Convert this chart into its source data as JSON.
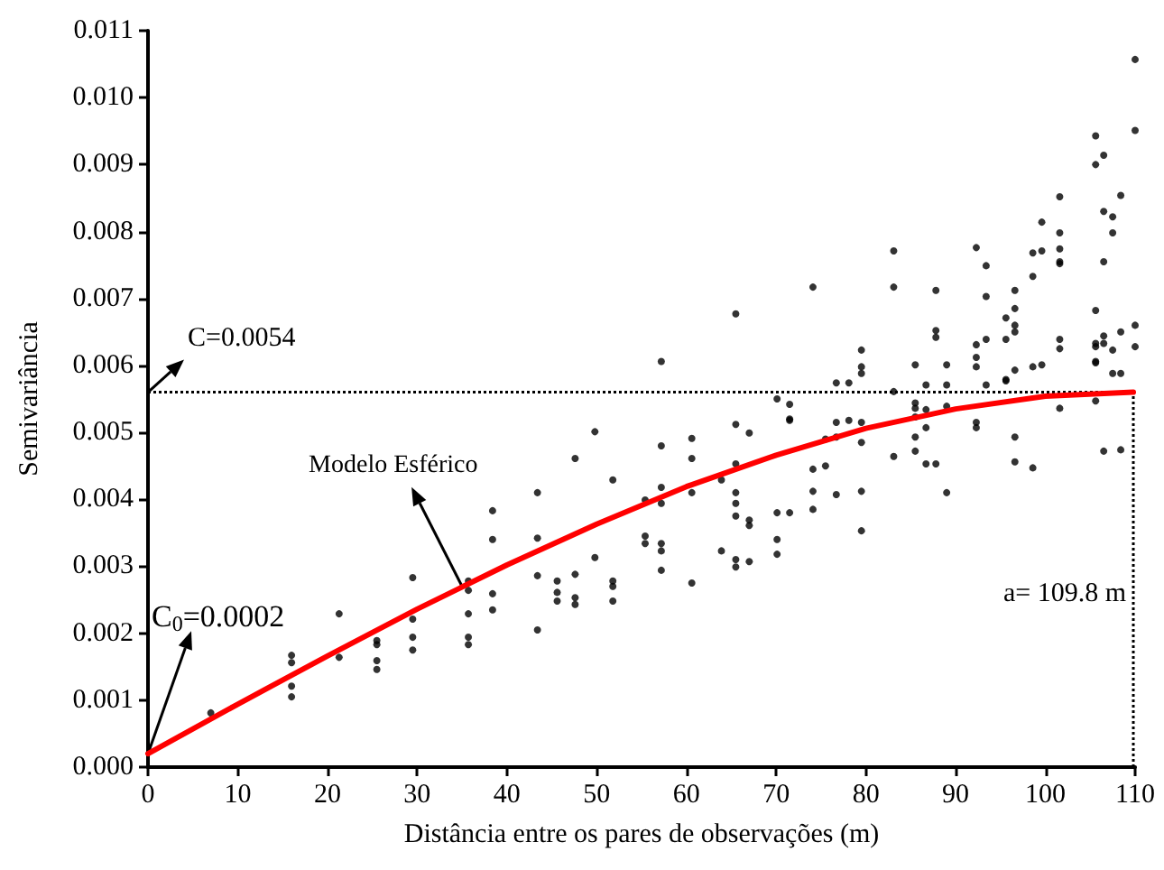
{
  "chart_data": {
    "type": "scatter",
    "xlabel": "Distância entre os pares de observações (m)",
    "ylabel": "Semivariância",
    "xlim": [
      0,
      110
    ],
    "xticks": [
      0,
      10,
      20,
      30,
      40,
      50,
      60,
      70,
      80,
      90,
      100,
      110
    ],
    "ylim": [
      0,
      0.011
    ],
    "yticks": [
      {
        "value": 0,
        "label": "0.000"
      },
      {
        "value": 0.001,
        "label": "0.001"
      },
      {
        "value": 0.002,
        "label": "0.002"
      },
      {
        "value": 0.003,
        "label": "0.003"
      },
      {
        "value": 0.004,
        "label": "0.004"
      },
      {
        "value": 0.005,
        "label": "0.005"
      },
      {
        "value": 0.006,
        "label": "0.006"
      },
      {
        "value": 0.007,
        "label": "0.007"
      },
      {
        "value": 0.008,
        "label": "0.008"
      },
      {
        "value": 0.009,
        "label": "0.009"
      },
      {
        "value": 0.01,
        "label": "0.010"
      },
      {
        "value": 0.011,
        "label": "0.011"
      }
    ],
    "grid": false,
    "marker": "circle",
    "series": [
      {
        "color": "#000000",
        "x": [
          7,
          16,
          16,
          16,
          16,
          21.3,
          21.3,
          25.5,
          25.5,
          25.5,
          25.5,
          29.5,
          29.5,
          29.5,
          29.5,
          35.7,
          35.7,
          35.7,
          35.7,
          35.7,
          38.4,
          38.4,
          38.4,
          38.4,
          43.4,
          43.4,
          43.4,
          43.4,
          45.6,
          45.6,
          45.6,
          47.6,
          47.6,
          47.6,
          47.6,
          49.8,
          49.8,
          51.8,
          51.8,
          51.8,
          51.8,
          55.4,
          55.4,
          55.4,
          57.2,
          57.2,
          57.2,
          57.2,
          57.2,
          57.2,
          57.2,
          60.6,
          60.6,
          60.6,
          60.6,
          63.9,
          63.9,
          65.5,
          65.5,
          65.5,
          65.5,
          65.5,
          65.5,
          65.5,
          65.5,
          67,
          67,
          67,
          67,
          70.1,
          70.1,
          70.1,
          70.1,
          71.5,
          71.5,
          71.5,
          71.5,
          74.1,
          74.1,
          74.1,
          74.1,
          75.5,
          75.5,
          76.7,
          76.7,
          76.7,
          76.7,
          78.1,
          78.1,
          79.5,
          79.5,
          79.5,
          79.5,
          79.5,
          79.5,
          79.5,
          83.1,
          83.1,
          83.1,
          83.1,
          85.5,
          85.5,
          85.5,
          85.5,
          85.5,
          85.5,
          86.7,
          86.7,
          86.7,
          86.7,
          87.8,
          87.8,
          87.8,
          87.8,
          89,
          89,
          89,
          89,
          92.3,
          92.3,
          92.3,
          92.3,
          92.3,
          92.3,
          93.4,
          93.4,
          93.4,
          93.4,
          95.6,
          95.6,
          95.6,
          95.6,
          96.6,
          96.6,
          96.6,
          96.6,
          96.6,
          96.6,
          96.6,
          98.6,
          98.6,
          98.6,
          98.6,
          99.6,
          99.6,
          99.6,
          101.6,
          101.6,
          101.6,
          101.6,
          101.6,
          101.6,
          101.6,
          101.6,
          105.6,
          105.6,
          105.6,
          105.6,
          105.6,
          105.6,
          105.6,
          105.6,
          106.5,
          106.5,
          106.5,
          106.5,
          106.5,
          106.5,
          107.5,
          107.5,
          107.5,
          107.5,
          108.4,
          108.4,
          108.4,
          108.4,
          110,
          110,
          110,
          110
        ],
        "values": [
          0.00081,
          0.00167,
          0.00156,
          0.00121,
          0.00105,
          0.00229,
          0.00164,
          0.00189,
          0.00183,
          0.00159,
          0.00146,
          0.00283,
          0.00221,
          0.00194,
          0.00175,
          0.00278,
          0.00264,
          0.00229,
          0.00194,
          0.00183,
          0.00383,
          0.0034,
          0.00259,
          0.00235,
          0.0041,
          0.00342,
          0.00286,
          0.00205,
          0.00278,
          0.00261,
          0.00248,
          0.00461,
          0.00288,
          0.00253,
          0.00243,
          0.00501,
          0.00313,
          0.00429,
          0.00278,
          0.0027,
          0.00248,
          0.00399,
          0.00345,
          0.00334,
          0.00606,
          0.0048,
          0.00418,
          0.00394,
          0.00334,
          0.00323,
          0.00294,
          0.00491,
          0.00461,
          0.0041,
          0.00275,
          0.00429,
          0.00323,
          0.00677,
          0.00512,
          0.00453,
          0.0041,
          0.00394,
          0.00375,
          0.0031,
          0.00299,
          0.00499,
          0.00369,
          0.00361,
          0.00307,
          0.0055,
          0.0038,
          0.0034,
          0.00318,
          0.00542,
          0.0052,
          0.00518,
          0.0038,
          0.00717,
          0.00445,
          0.00412,
          0.00385,
          0.0049,
          0.0045,
          0.00574,
          0.00515,
          0.00493,
          0.00407,
          0.00574,
          0.00518,
          0.00623,
          0.00598,
          0.00588,
          0.00515,
          0.00485,
          0.00412,
          0.00353,
          0.00771,
          0.00717,
          0.00561,
          0.00464,
          0.00601,
          0.00544,
          0.00536,
          0.00523,
          0.00493,
          0.00472,
          0.00571,
          0.00534,
          0.00507,
          0.00453,
          0.00712,
          0.00652,
          0.00642,
          0.00453,
          0.00601,
          0.00571,
          0.00539,
          0.0041,
          0.00776,
          0.00631,
          0.00612,
          0.00598,
          0.00515,
          0.00507,
          0.00749,
          0.00703,
          0.00639,
          0.00571,
          0.00671,
          0.00639,
          0.00579,
          0.00577,
          0.00712,
          0.00685,
          0.0066,
          0.0065,
          0.00593,
          0.00493,
          0.00456,
          0.00768,
          0.00733,
          0.00598,
          0.00447,
          0.00814,
          0.00771,
          0.00601,
          0.00852,
          0.00798,
          0.00774,
          0.00755,
          0.00752,
          0.00639,
          0.00625,
          0.00536,
          0.00943,
          0.009,
          0.00682,
          0.00633,
          0.00628,
          0.00606,
          0.00604,
          0.00547,
          0.00914,
          0.0083,
          0.00755,
          0.00644,
          0.00633,
          0.00472,
          0.00822,
          0.00798,
          0.00623,
          0.00588,
          0.00854,
          0.0065,
          0.00588,
          0.00474,
          0.01057,
          0.00951,
          0.0066,
          0.00628
        ]
      },
      {
        "type": "line",
        "color": "#ff0000",
        "marker": "none",
        "line_style": "solid",
        "x": [
          0,
          10,
          20,
          30,
          40,
          50,
          60,
          70,
          80,
          90,
          100,
          109.8
        ],
        "values": [
          0.0002,
          0.00094,
          0.00166,
          0.00236,
          0.00302,
          0.00363,
          0.00419,
          0.00466,
          0.00506,
          0.00535,
          0.00554,
          0.0056
        ]
      }
    ],
    "ref_lines": [
      {
        "axis": "y",
        "value": 0.0056,
        "line_style": "dotted",
        "color": "#000000"
      },
      {
        "axis": "x",
        "value": 109.8,
        "label": "a= 109.8 m",
        "line_style": "dotted",
        "color": "#000000"
      }
    ],
    "annotations": [
      "C=0.0054",
      "C$_{0}$=0.0002",
      {
        "text": "Modelo Esférico",
        "x": 35,
        "y": 0.0027
      }
    ]
  }
}
